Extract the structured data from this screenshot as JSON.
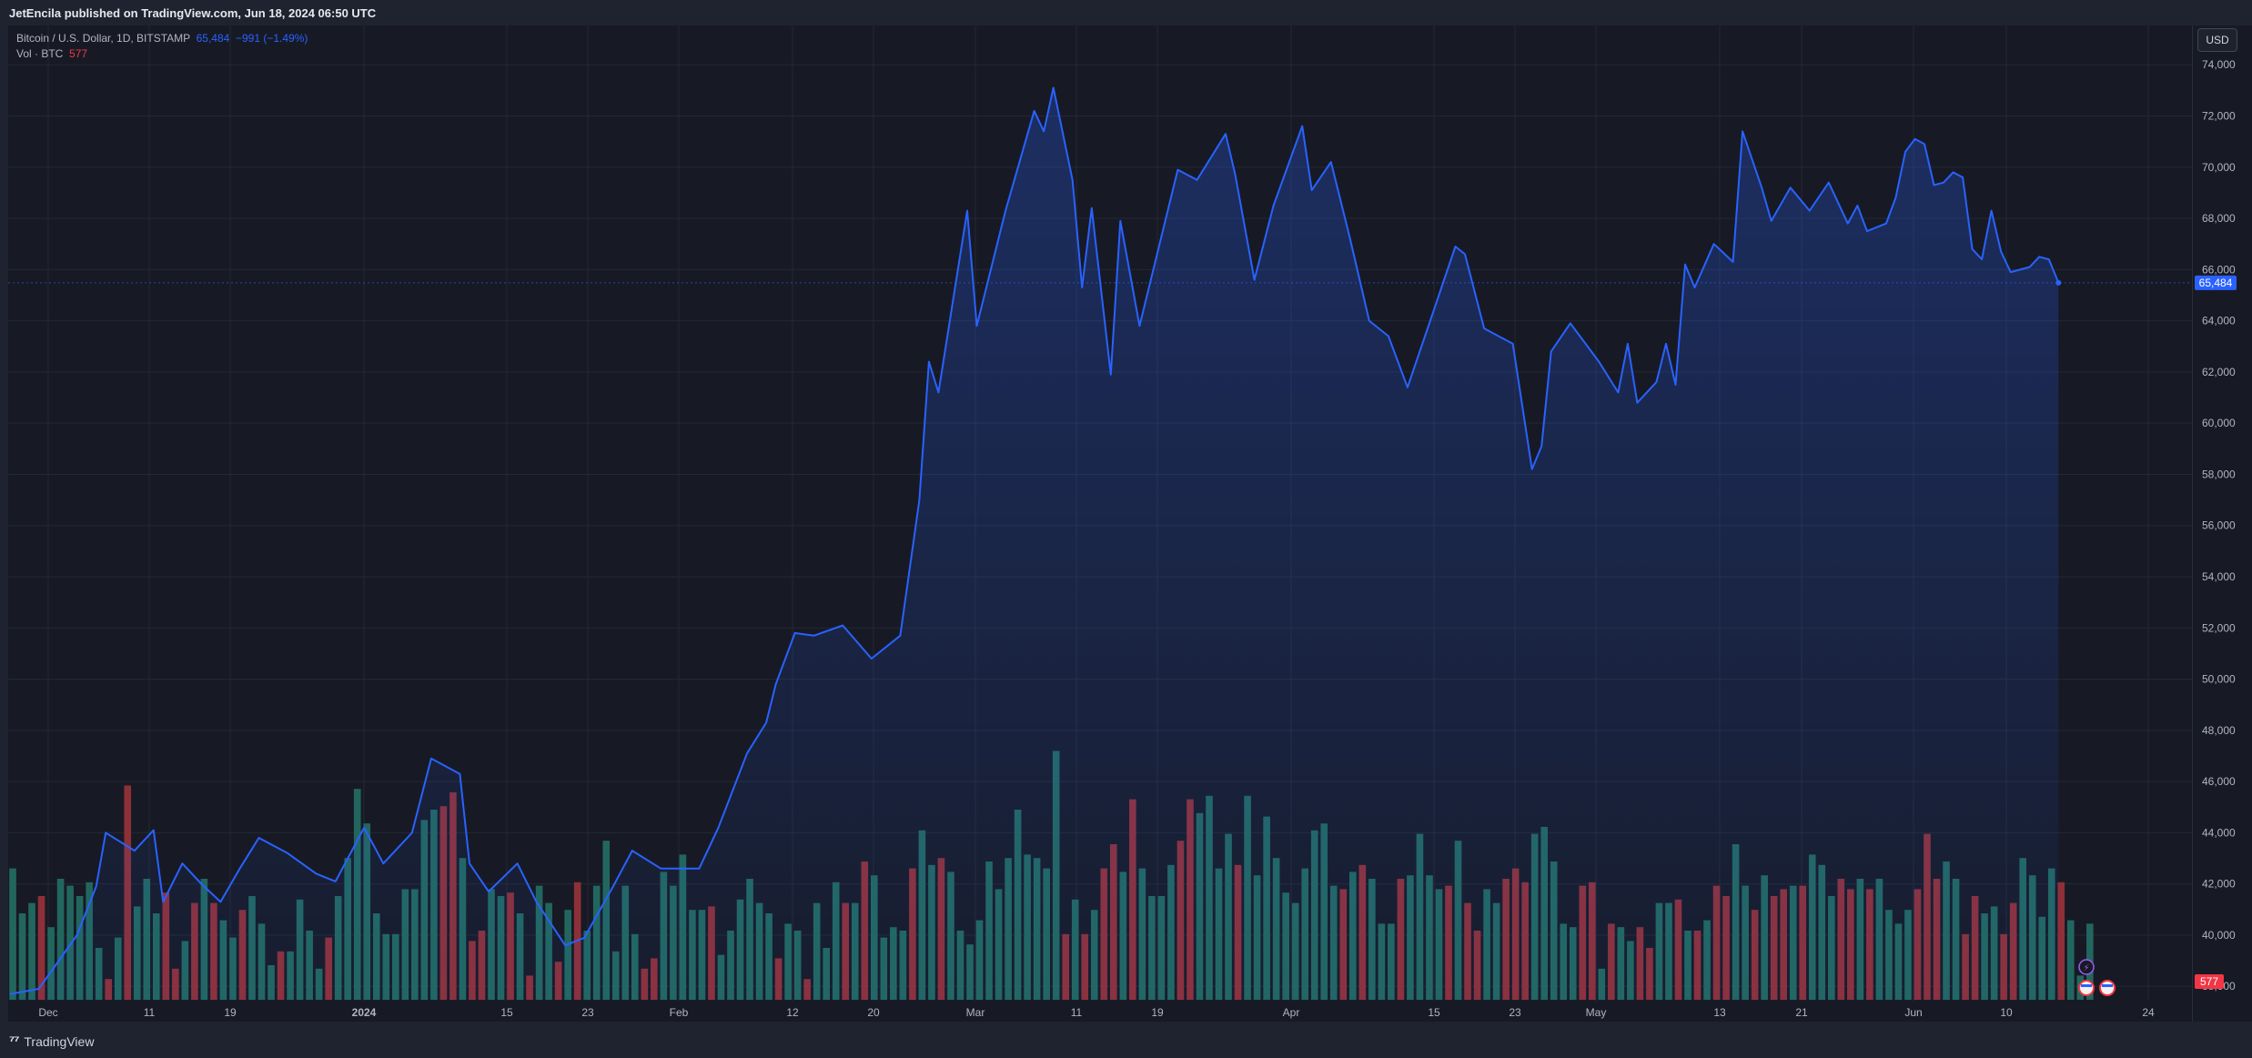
{
  "header": {
    "published": "JetEncila published on TradingView.com, Jun 18, 2024 06:50 UTC"
  },
  "legend": {
    "symbol": "Bitcoin / U.S. Dollar, 1D, BITSTAMP",
    "price": "65,484",
    "change": "−991 (−1.49%)",
    "volume_label": "Vol · BTC",
    "volume_value": "577"
  },
  "controls": {
    "currency": "USD"
  },
  "footer": {
    "brand": "TradingView"
  },
  "colors": {
    "line": "#2962ff",
    "volume_up": "#22675f",
    "volume_down": "#8e3038",
    "price_label_bg": "#2962ff",
    "volume_label_bg": "#f23645"
  },
  "chart_data": {
    "type": "area",
    "x_tick_labels": [
      "Dec",
      "11",
      "19",
      "2024",
      "15",
      "23",
      "Feb",
      "12",
      "20",
      "Mar",
      "11",
      "19",
      "Apr",
      "15",
      "23",
      "May",
      "13",
      "21",
      "Jun",
      "10",
      "24"
    ],
    "y_tick_labels": [
      "38,000",
      "40,000",
      "42,000",
      "44,000",
      "46,000",
      "48,000",
      "50,000",
      "52,000",
      "54,000",
      "56,000",
      "58,000",
      "60,000",
      "62,000",
      "64,000",
      "66,000",
      "68,000",
      "70,000",
      "72,000",
      "74,000"
    ],
    "ylim": [
      36800,
      75500
    ],
    "last_price": 65484,
    "last_price_label": "65,484",
    "last_volume_label": "577",
    "price_series": [
      {
        "date": "2023-11-25",
        "close": 37700
      },
      {
        "date": "2023-11-28",
        "close": 37900
      },
      {
        "date": "2023-12-02",
        "close": 40000
      },
      {
        "date": "2023-12-04",
        "close": 41900
      },
      {
        "date": "2023-12-05",
        "close": 44000
      },
      {
        "date": "2023-12-08",
        "close": 43300
      },
      {
        "date": "2023-12-10",
        "close": 44100
      },
      {
        "date": "2023-12-11",
        "close": 41300
      },
      {
        "date": "2023-12-13",
        "close": 42800
      },
      {
        "date": "2023-12-15",
        "close": 42000
      },
      {
        "date": "2023-12-17",
        "close": 41300
      },
      {
        "date": "2023-12-19",
        "close": 42600
      },
      {
        "date": "2023-12-21",
        "close": 43800
      },
      {
        "date": "2023-12-24",
        "close": 43200
      },
      {
        "date": "2023-12-27",
        "close": 42400
      },
      {
        "date": "2023-12-29",
        "close": 42100
      },
      {
        "date": "2024-01-01",
        "close": 44200
      },
      {
        "date": "2024-01-03",
        "close": 42800
      },
      {
        "date": "2024-01-06",
        "close": 44000
      },
      {
        "date": "2024-01-08",
        "close": 46900
      },
      {
        "date": "2024-01-11",
        "close": 46300
      },
      {
        "date": "2024-01-12",
        "close": 42800
      },
      {
        "date": "2024-01-14",
        "close": 41700
      },
      {
        "date": "2024-01-17",
        "close": 42800
      },
      {
        "date": "2024-01-19",
        "close": 41300
      },
      {
        "date": "2024-01-22",
        "close": 39600
      },
      {
        "date": "2024-01-24",
        "close": 39900
      },
      {
        "date": "2024-01-27",
        "close": 41900
      },
      {
        "date": "2024-01-29",
        "close": 43300
      },
      {
        "date": "2024-02-01",
        "close": 42600
      },
      {
        "date": "2024-02-05",
        "close": 42600
      },
      {
        "date": "2024-02-07",
        "close": 44200
      },
      {
        "date": "2024-02-10",
        "close": 47100
      },
      {
        "date": "2024-02-12",
        "close": 48300
      },
      {
        "date": "2024-02-13",
        "close": 49800
      },
      {
        "date": "2024-02-15",
        "close": 51800
      },
      {
        "date": "2024-02-17",
        "close": 51700
      },
      {
        "date": "2024-02-20",
        "close": 52100
      },
      {
        "date": "2024-02-23",
        "close": 50800
      },
      {
        "date": "2024-02-26",
        "close": 51700
      },
      {
        "date": "2024-02-28",
        "close": 57000
      },
      {
        "date": "2024-02-29",
        "close": 62400
      },
      {
        "date": "2024-03-01",
        "close": 61200
      },
      {
        "date": "2024-03-04",
        "close": 68300
      },
      {
        "date": "2024-03-05",
        "close": 63800
      },
      {
        "date": "2024-03-08",
        "close": 68300
      },
      {
        "date": "2024-03-11",
        "close": 72200
      },
      {
        "date": "2024-03-12",
        "close": 71400
      },
      {
        "date": "2024-03-13",
        "close": 73100
      },
      {
        "date": "2024-03-15",
        "close": 69500
      },
      {
        "date": "2024-03-16",
        "close": 65300
      },
      {
        "date": "2024-03-17",
        "close": 68400
      },
      {
        "date": "2024-03-19",
        "close": 61900
      },
      {
        "date": "2024-03-20",
        "close": 67900
      },
      {
        "date": "2024-03-22",
        "close": 63800
      },
      {
        "date": "2024-03-26",
        "close": 69900
      },
      {
        "date": "2024-03-28",
        "close": 69500
      },
      {
        "date": "2024-03-31",
        "close": 71300
      },
      {
        "date": "2024-04-01",
        "close": 69700
      },
      {
        "date": "2024-04-03",
        "close": 65600
      },
      {
        "date": "2024-04-05",
        "close": 68500
      },
      {
        "date": "2024-04-08",
        "close": 71600
      },
      {
        "date": "2024-04-09",
        "close": 69100
      },
      {
        "date": "2024-04-11",
        "close": 70200
      },
      {
        "date": "2024-04-13",
        "close": 67200
      },
      {
        "date": "2024-04-15",
        "close": 64000
      },
      {
        "date": "2024-04-17",
        "close": 63400
      },
      {
        "date": "2024-04-19",
        "close": 61400
      },
      {
        "date": "2024-04-21",
        "close": 63600
      },
      {
        "date": "2024-04-24",
        "close": 66900
      },
      {
        "date": "2024-04-25",
        "close": 66600
      },
      {
        "date": "2024-04-27",
        "close": 63700
      },
      {
        "date": "2024-04-30",
        "close": 63100
      },
      {
        "date": "2024-05-02",
        "close": 58200
      },
      {
        "date": "2024-05-03",
        "close": 59100
      },
      {
        "date": "2024-05-04",
        "close": 62800
      },
      {
        "date": "2024-05-06",
        "close": 63900
      },
      {
        "date": "2024-05-09",
        "close": 62400
      },
      {
        "date": "2024-05-11",
        "close": 61200
      },
      {
        "date": "2024-05-12",
        "close": 63100
      },
      {
        "date": "2024-05-13",
        "close": 60800
      },
      {
        "date": "2024-05-15",
        "close": 61600
      },
      {
        "date": "2024-05-16",
        "close": 63100
      },
      {
        "date": "2024-05-17",
        "close": 61500
      },
      {
        "date": "2024-05-18",
        "close": 66200
      },
      {
        "date": "2024-05-19",
        "close": 65300
      },
      {
        "date": "2024-05-21",
        "close": 67000
      },
      {
        "date": "2024-05-23",
        "close": 66300
      },
      {
        "date": "2024-05-24",
        "close": 71400
      },
      {
        "date": "2024-05-26",
        "close": 69200
      },
      {
        "date": "2024-05-27",
        "close": 67900
      },
      {
        "date": "2024-05-29",
        "close": 69200
      },
      {
        "date": "2024-05-31",
        "close": 68300
      },
      {
        "date": "2024-06-02",
        "close": 69400
      },
      {
        "date": "2024-06-04",
        "close": 67800
      },
      {
        "date": "2024-06-05",
        "close": 68500
      },
      {
        "date": "2024-06-06",
        "close": 67500
      },
      {
        "date": "2024-06-08",
        "close": 67800
      },
      {
        "date": "2024-06-09",
        "close": 68800
      },
      {
        "date": "2024-06-10",
        "close": 70600
      },
      {
        "date": "2024-06-11",
        "close": 71100
      },
      {
        "date": "2024-06-12",
        "close": 70900
      },
      {
        "date": "2024-06-13",
        "close": 69300
      },
      {
        "date": "2024-06-14",
        "close": 69400
      },
      {
        "date": "2024-06-15",
        "close": 69800
      },
      {
        "date": "2024-06-16",
        "close": 69600
      },
      {
        "date": "2024-06-17",
        "close": 66800
      },
      {
        "date": "2024-06-18",
        "close": 66400
      },
      {
        "date": "2024-06-19",
        "close": 68300
      },
      {
        "date": "2024-06-20",
        "close": 66700
      },
      {
        "date": "2024-06-21",
        "close": 65900
      },
      {
        "date": "2024-06-23",
        "close": 66100
      },
      {
        "date": "2024-06-24",
        "close": 66500
      },
      {
        "date": "2024-06-25",
        "close": 66400
      },
      {
        "date": "2024-06-26",
        "close": 65484
      }
    ],
    "volume_relative": [
      0.38,
      0.25,
      0.28,
      0.3,
      0.21,
      0.35,
      0.33,
      0.3,
      0.34,
      0.15,
      0.06,
      0.18,
      0.62,
      0.27,
      0.35,
      0.25,
      0.31,
      0.09,
      0.17,
      0.28,
      0.35,
      0.28,
      0.23,
      0.18,
      0.26,
      0.3,
      0.22,
      0.1,
      0.14,
      0.14,
      0.29,
      0.2,
      0.09,
      0.18,
      0.3,
      0.41,
      0.61,
      0.51,
      0.25,
      0.19,
      0.19,
      0.32,
      0.32,
      0.52,
      0.55,
      0.56,
      0.6,
      0.41,
      0.17,
      0.2,
      0.32,
      0.3,
      0.31,
      0.25,
      0.07,
      0.33,
      0.28,
      0.11,
      0.26,
      0.34,
      0.2,
      0.33,
      0.46,
      0.14,
      0.33,
      0.19,
      0.09,
      0.12,
      0.37,
      0.33,
      0.42,
      0.26,
      0.26,
      0.27,
      0.13,
      0.2,
      0.29,
      0.35,
      0.28,
      0.25,
      0.12,
      0.22,
      0.2,
      0.06,
      0.28,
      0.15,
      0.34,
      0.28,
      0.28,
      0.4,
      0.36,
      0.18,
      0.21,
      0.2,
      0.38,
      0.49,
      0.39,
      0.41,
      0.37,
      0.2,
      0.16,
      0.23,
      0.4,
      0.32,
      0.41,
      0.55,
      0.42,
      0.41,
      0.38,
      0.72,
      0.19,
      0.29,
      0.19,
      0.26,
      0.38,
      0.45,
      0.37,
      0.58,
      0.38,
      0.3,
      0.3,
      0.39,
      0.46,
      0.58,
      0.54,
      0.59,
      0.38,
      0.48,
      0.39,
      0.59,
      0.36,
      0.53,
      0.41,
      0.31,
      0.28,
      0.38,
      0.49,
      0.51,
      0.33,
      0.32,
      0.37,
      0.39,
      0.35,
      0.22,
      0.22,
      0.35,
      0.36,
      0.48,
      0.36,
      0.32,
      0.33,
      0.46,
      0.28,
      0.2,
      0.32,
      0.28,
      0.35,
      0.38,
      0.34,
      0.48,
      0.5,
      0.4,
      0.22,
      0.21,
      0.33,
      0.34,
      0.09,
      0.22,
      0.21,
      0.17,
      0.21,
      0.15,
      0.28,
      0.28,
      0.29,
      0.2,
      0.2,
      0.23,
      0.33,
      0.3,
      0.45,
      0.33,
      0.26,
      0.36,
      0.3,
      0.32,
      0.33,
      0.33,
      0.42,
      0.39,
      0.3,
      0.35,
      0.32,
      0.35,
      0.32,
      0.35,
      0.26,
      0.22,
      0.26,
      0.32,
      0.48,
      0.35,
      0.4,
      0.35,
      0.19,
      0.3,
      0.25,
      0.27,
      0.19,
      0.28,
      0.41,
      0.36,
      0.24,
      0.38,
      0.34,
      0.23,
      0.07,
      0.22,
      0.25,
      0.27,
      0.21,
      0.35,
      0.21,
      0.28,
      0.26,
      0.29,
      0.27,
      0.26,
      0.32,
      0.24,
      0.25,
      0.32,
      0.24,
      0.23,
      0.22,
      0.34,
      0.15,
      0.28,
      0.12,
      0.14,
      0.23,
      0.29,
      0.35,
      0.38,
      0.32,
      0.33,
      0.36,
      0.43,
      0.32,
      0.18,
      0.09,
      0.09,
      0.06
    ]
  }
}
